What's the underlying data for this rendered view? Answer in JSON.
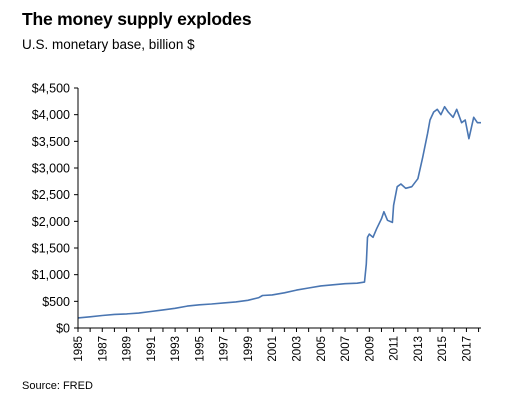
{
  "title": "The money supply explodes",
  "subtitle": "U.S. monetary base, billion $",
  "source": "Source: FRED",
  "colors": {
    "line": "#4a76b2",
    "axis": "#000000"
  },
  "chart_data": {
    "type": "line",
    "title": "The money supply explodes",
    "subtitle": "U.S. monetary base, billion $",
    "xlabel": "",
    "ylabel": "",
    "xlim": [
      1985,
      2018.2
    ],
    "ylim": [
      0,
      4500
    ],
    "grid": false,
    "y_ticks": [
      0,
      500,
      1000,
      1500,
      2000,
      2500,
      3000,
      3500,
      4000,
      4500
    ],
    "y_tick_labels": [
      "$0",
      "$500",
      "$1,000",
      "$1,500",
      "$2,000",
      "$2,500",
      "$3,000",
      "$3,500",
      "$4,000",
      "$4,500"
    ],
    "x_ticks": [
      1985,
      1987,
      1989,
      1991,
      1993,
      1995,
      1997,
      1999,
      2001,
      2003,
      2005,
      2007,
      2009,
      2011,
      2013,
      2015,
      2017
    ],
    "x_tick_labels": [
      "1985",
      "1987",
      "1989",
      "1991",
      "1993",
      "1995",
      "1997",
      "1999",
      "2001",
      "2003",
      "2005",
      "2007",
      "2009",
      "2011",
      "2013",
      "2015",
      "2017"
    ],
    "series": [
      {
        "x": [
          1985,
          1986,
          1987,
          1988,
          1989,
          1990,
          1991,
          1992,
          1993,
          1994,
          1995,
          1996,
          1997,
          1998,
          1999,
          1999.9,
          2000.2,
          2001,
          2002,
          2003,
          2004,
          2005,
          2006,
          2007,
          2008,
          2008.6,
          2008.75,
          2008.85,
          2009,
          2009.3,
          2009.6,
          2010,
          2010.2,
          2010.5,
          2010.9,
          2011,
          2011.3,
          2011.6,
          2012,
          2012.5,
          2013,
          2013.4,
          2013.8,
          2014,
          2014.3,
          2014.6,
          2014.9,
          2015.2,
          2015.5,
          2015.9,
          2016.2,
          2016.6,
          2016.9,
          2017.2,
          2017.6,
          2017.9,
          2018.2
        ],
        "values": [
          190,
          210,
          235,
          255,
          265,
          280,
          310,
          340,
          370,
          410,
          435,
          450,
          470,
          490,
          520,
          570,
          610,
          620,
          660,
          710,
          750,
          790,
          810,
          830,
          840,
          860,
          1200,
          1700,
          1760,
          1700,
          1860,
          2050,
          2180,
          2020,
          1980,
          2300,
          2650,
          2700,
          2620,
          2650,
          2800,
          3200,
          3650,
          3900,
          4050,
          4100,
          4000,
          4150,
          4050,
          3950,
          4100,
          3850,
          3900,
          3550,
          3950,
          3850,
          3850
        ]
      }
    ]
  }
}
